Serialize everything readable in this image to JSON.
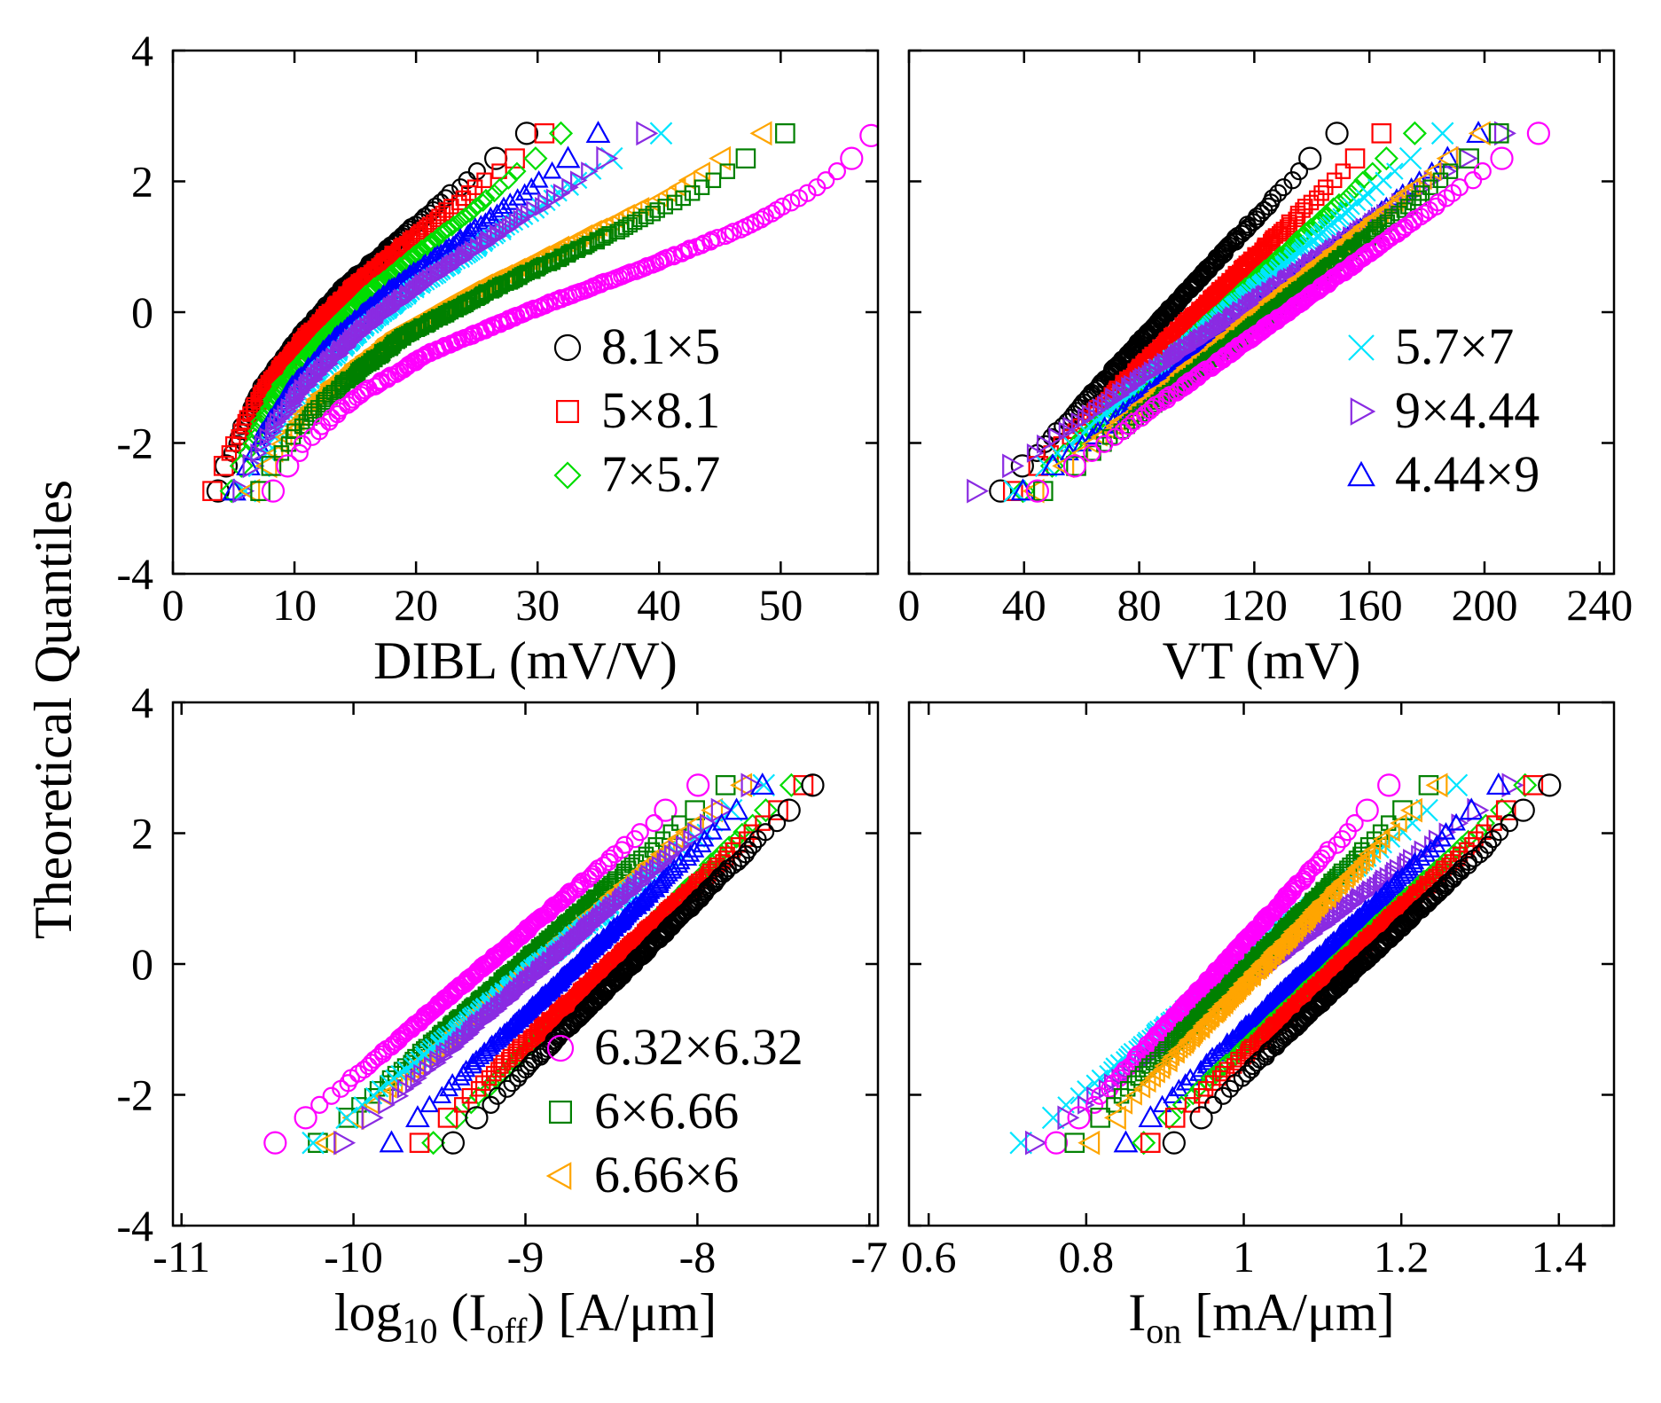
{
  "figure": {
    "ylabel": "Theoretical Quantiles"
  },
  "chart_data": [
    {
      "type": "scatter",
      "panel": "top-left",
      "xlabel": "DIBL (mV/V)",
      "xlim": [
        0,
        58
      ],
      "ylim": [
        -4,
        4
      ],
      "xticks": [
        0,
        10,
        20,
        30,
        40,
        50
      ],
      "yticks": [
        -4,
        -2,
        0,
        2,
        4
      ],
      "legend_position": "center-right",
      "legend": [
        {
          "name": "8.1×5",
          "marker": "circle",
          "color": "#000000"
        },
        {
          "name": "5×8.1",
          "marker": "square",
          "color": "#ff0000"
        },
        {
          "name": "7×5.7",
          "marker": "diamond",
          "color": "#00dd00"
        }
      ],
      "series": [
        {
          "marker": "circle",
          "color": "#000000",
          "q_low": -3.3,
          "q_high": 3.3,
          "x": [
            2.5,
            4,
            5.5,
            7.5,
            10.5,
            14,
            18.5,
            23,
            28,
            33
          ]
        },
        {
          "marker": "square",
          "color": "#ff0000",
          "q_low": -3.3,
          "q_high": 3.3,
          "x": [
            2,
            3.8,
            5.5,
            7.8,
            11,
            14.8,
            19.5,
            24.5,
            29.5,
            34
          ]
        },
        {
          "marker": "diamond",
          "color": "#00dd00",
          "q_low": -3.3,
          "q_high": 3.3,
          "x": [
            3.5,
            5,
            6.8,
            9,
            12.5,
            16.5,
            21.5,
            26.5,
            31,
            35
          ]
        },
        {
          "marker": "triangle-up",
          "color": "#0000ff",
          "q_low": -3.3,
          "q_high": 3.3,
          "x": [
            3,
            5.5,
            7.5,
            10,
            13.5,
            18,
            23.5,
            29,
            34,
            38.5
          ]
        },
        {
          "marker": "x",
          "color": "#00e5ff",
          "q_low": -3.3,
          "q_high": 3.3,
          "x": [
            4.5,
            6.5,
            8.5,
            11,
            15,
            20,
            26,
            32,
            38,
            47
          ]
        },
        {
          "marker": "triangle-right",
          "color": "#8a2be2",
          "q_low": -3.3,
          "q_high": 3.3,
          "x": [
            4,
            6,
            8,
            11,
            15,
            20,
            26,
            32,
            37,
            45
          ]
        },
        {
          "marker": "triangle-left",
          "color": "#ffa500",
          "q_low": -3.3,
          "q_high": 3.3,
          "x": [
            5,
            7,
            9.5,
            13,
            18,
            25,
            33,
            41,
            47,
            53
          ]
        },
        {
          "marker": "square",
          "color": "#008000",
          "q_low": -3.3,
          "q_high": 3.3,
          "x": [
            5.5,
            7.5,
            10,
            14,
            19,
            26.5,
            35,
            43,
            49,
            55
          ]
        },
        {
          "marker": "circle",
          "color": "#ff00ff",
          "q_low": -3.3,
          "q_high": 2.7,
          "x": [
            6.5,
            8.5,
            11,
            15,
            21,
            29.5,
            39,
            48,
            54,
            57.5
          ]
        }
      ]
    },
    {
      "type": "scatter",
      "panel": "top-right",
      "xlabel": "VT (mV)",
      "xlim": [
        0,
        245
      ],
      "ylim": [
        -4,
        4
      ],
      "xticks": [
        0,
        40,
        80,
        120,
        160,
        200,
        240
      ],
      "yticks": [
        -4,
        -2,
        0,
        2,
        4
      ],
      "legend_position": "center-right",
      "legend": [
        {
          "name": "5.7×7",
          "marker": "x",
          "color": "#00e5ff"
        },
        {
          "name": "9×4.44",
          "marker": "triangle-right",
          "color": "#8a2be2"
        },
        {
          "name": "4.44×9",
          "marker": "triangle-up",
          "color": "#0000ff"
        }
      ],
      "series": [
        {
          "marker": "circle",
          "color": "#000000",
          "q_low": -3.2,
          "q_high": 3.3,
          "x_low": 22,
          "x_high": 160
        },
        {
          "marker": "square",
          "color": "#ff0000",
          "q_low": -3.2,
          "q_high": 3.3,
          "x_low": 25,
          "x_high": 178
        },
        {
          "marker": "diamond",
          "color": "#00dd00",
          "q_low": -3.2,
          "q_high": 3.3,
          "x_low": 28,
          "x_high": 190
        },
        {
          "marker": "x",
          "color": "#00e5ff",
          "q_low": -3.2,
          "q_high": 3.3,
          "x_low": 24,
          "x_high": 200
        },
        {
          "marker": "triangle-up",
          "color": "#0000ff",
          "q_low": -3.2,
          "q_high": 3.3,
          "x_low": 26,
          "x_high": 215
        },
        {
          "marker": "triangle-right",
          "color": "#8a2be2",
          "q_low": -3.2,
          "q_high": 3.3,
          "x_low": 8,
          "x_high": 225
        },
        {
          "marker": "triangle-left",
          "color": "#ffa500",
          "q_low": -3.2,
          "q_high": 3.3,
          "x_low": 30,
          "x_high": 215
        },
        {
          "marker": "square",
          "color": "#008000",
          "q_low": -3.2,
          "q_high": 3.3,
          "x_low": 33,
          "x_high": 222
        },
        {
          "marker": "circle",
          "color": "#ff00ff",
          "q_low": -3.2,
          "q_high": 3.3,
          "x_low": 30,
          "x_high": 236
        }
      ]
    },
    {
      "type": "scatter",
      "panel": "bottom-left",
      "xlabel": "log",
      "xlabel_sub1": "10",
      "xlabel_mid": " (I",
      "xlabel_sub2": "off",
      "xlabel_end": ") [A/μm]",
      "xlim": [
        -11.05,
        -6.95
      ],
      "ylim": [
        -4,
        4
      ],
      "xticks": [
        -11,
        -10,
        -9,
        -8,
        -7
      ],
      "yticks": [
        -4,
        -2,
        0,
        2,
        4
      ],
      "legend_position": "bottom-right",
      "legend": [
        {
          "name": "6.32×6.32",
          "marker": "circle",
          "color": "#ff00ff"
        },
        {
          "name": "6×6.66",
          "marker": "square",
          "color": "#008000"
        },
        {
          "name": "6.66×6",
          "marker": "triangle-left",
          "color": "#ffa500"
        }
      ],
      "series": [
        {
          "marker": "circle",
          "color": "#ff00ff",
          "q_low": -3.3,
          "q_high": 3.3,
          "x_low": -10.7,
          "x_high": -7.75
        },
        {
          "marker": "square",
          "color": "#008000",
          "q_low": -3.3,
          "q_high": 3.3,
          "x_low": -10.45,
          "x_high": -7.6
        },
        {
          "marker": "triangle-left",
          "color": "#ffa500",
          "q_low": -3.3,
          "q_high": 3.3,
          "x_low": -10.4,
          "x_high": -7.5
        },
        {
          "marker": "x",
          "color": "#00e5ff",
          "q_low": -3.3,
          "q_high": 3.3,
          "x_low": -10.5,
          "x_high": -7.35
        },
        {
          "marker": "triangle-right",
          "color": "#8a2be2",
          "q_low": -3.3,
          "q_high": 3.3,
          "x_low": -10.3,
          "x_high": -7.45
        },
        {
          "marker": "triangle-up",
          "color": "#0000ff",
          "q_low": -3.3,
          "q_high": 3.3,
          "x_low": -10.0,
          "x_high": -7.4
        },
        {
          "marker": "diamond",
          "color": "#00dd00",
          "q_low": -3.3,
          "q_high": 3.3,
          "x_low": -9.75,
          "x_high": -7.25
        },
        {
          "marker": "square",
          "color": "#ff0000",
          "q_low": -3.3,
          "q_high": 3.3,
          "x_low": -9.85,
          "x_high": -7.15
        },
        {
          "marker": "circle",
          "color": "#000000",
          "q_low": -3.3,
          "q_high": 3.3,
          "x_low": -9.65,
          "x_high": -7.1
        }
      ]
    },
    {
      "type": "scatter",
      "panel": "bottom-right",
      "xlabel": "I",
      "xlabel_sub": "on",
      "xlabel_end": " [mA/μm]",
      "xlim": [
        0.575,
        1.47
      ],
      "ylim": [
        -4,
        4
      ],
      "xticks": [
        0.6,
        0.8,
        1,
        1.2,
        1.4
      ],
      "xtick_labels": [
        "0.6",
        "0.8",
        "1",
        "1.2",
        "1.4"
      ],
      "yticks": [
        -4,
        -2,
        0,
        2,
        4
      ],
      "series": [
        {
          "marker": "x",
          "color": "#00e5ff",
          "q_low": -3.3,
          "q_high": 3.3,
          "x_low": 0.66,
          "x_high": 1.33
        },
        {
          "marker": "triangle-right",
          "color": "#8a2be2",
          "q_low": -3.3,
          "q_high": 3.3,
          "x_low": 0.67,
          "x_high": 1.4
        },
        {
          "marker": "circle",
          "color": "#ff00ff",
          "q_low": -3.3,
          "q_high": 3.3,
          "x_low": 0.72,
          "x_high": 1.23
        },
        {
          "marker": "square",
          "color": "#008000",
          "q_low": -3.3,
          "q_high": 3.3,
          "x_low": 0.74,
          "x_high": 1.28
        },
        {
          "marker": "triangle-left",
          "color": "#ffa500",
          "q_low": -3.3,
          "q_high": 3.3,
          "x_low": 0.76,
          "x_high": 1.29
        },
        {
          "marker": "triangle-up",
          "color": "#0000ff",
          "q_low": -3.3,
          "q_high": 3.3,
          "x_low": 0.8,
          "x_high": 1.37
        },
        {
          "marker": "diamond",
          "color": "#00dd00",
          "q_low": -3.3,
          "q_high": 3.3,
          "x_low": 0.82,
          "x_high": 1.41
        },
        {
          "marker": "square",
          "color": "#ff0000",
          "q_low": -3.3,
          "q_high": 3.3,
          "x_low": 0.83,
          "x_high": 1.42
        },
        {
          "marker": "circle",
          "color": "#000000",
          "q_low": -3.3,
          "q_high": 3.3,
          "x_low": 0.86,
          "x_high": 1.44
        }
      ]
    }
  ]
}
